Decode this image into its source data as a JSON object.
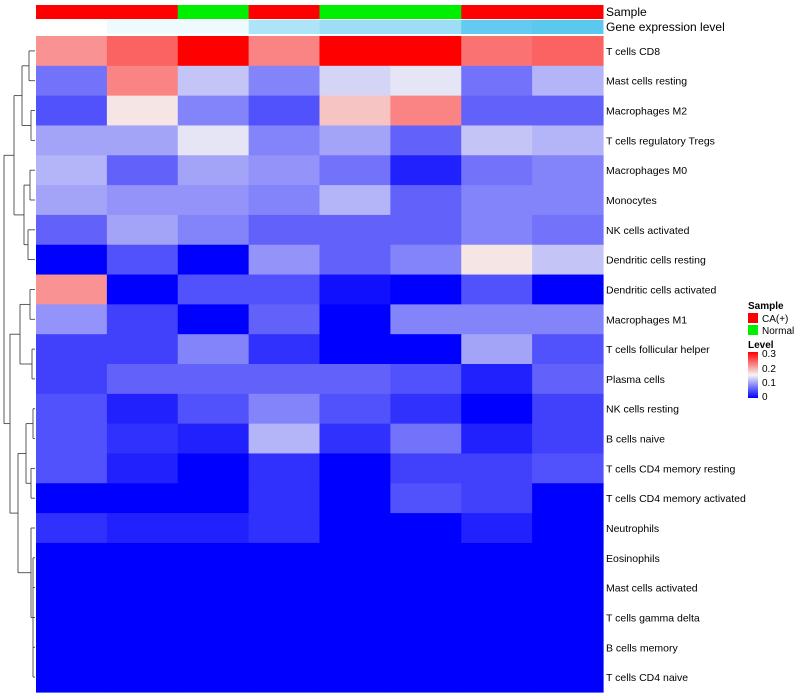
{
  "chart_data": {
    "type": "heatmap",
    "title": "",
    "columns": 8,
    "annotation_tracks": [
      {
        "name": "Sample",
        "values": [
          "CA(+)",
          "CA(+)",
          "Normal",
          "CA(+)",
          "Normal",
          "Normal",
          "CA(+)",
          "CA(+)"
        ]
      },
      {
        "name": "Gene expression level",
        "values": [
          0.0,
          0.1,
          0.1,
          0.5,
          0.6,
          0.6,
          0.95,
          1.0
        ]
      }
    ],
    "rows": [
      {
        "label": "T cells CD8",
        "values": [
          0.21,
          0.24,
          0.3,
          0.22,
          0.3,
          0.3,
          0.23,
          0.24
        ]
      },
      {
        "label": "Mast cells resting",
        "values": [
          0.07,
          0.22,
          0.12,
          0.08,
          0.13,
          0.14,
          0.07,
          0.11
        ]
      },
      {
        "label": "Macrophages M2",
        "values": [
          0.05,
          0.16,
          0.08,
          0.05,
          0.18,
          0.22,
          0.06,
          0.06
        ]
      },
      {
        "label": "T cells regulatory  Tregs",
        "values": [
          0.1,
          0.1,
          0.14,
          0.08,
          0.1,
          0.06,
          0.12,
          0.11
        ]
      },
      {
        "label": "Macrophages M0",
        "values": [
          0.11,
          0.06,
          0.1,
          0.09,
          0.07,
          0.02,
          0.07,
          0.08
        ]
      },
      {
        "label": "Monocytes",
        "values": [
          0.1,
          0.09,
          0.09,
          0.08,
          0.11,
          0.06,
          0.08,
          0.08
        ]
      },
      {
        "label": "NK cells activated",
        "values": [
          0.06,
          0.1,
          0.08,
          0.06,
          0.06,
          0.06,
          0.08,
          0.07
        ]
      },
      {
        "label": "Dendritic cells resting",
        "values": [
          0.0,
          0.05,
          0.0,
          0.09,
          0.06,
          0.08,
          0.16,
          0.12
        ]
      },
      {
        "label": "Dendritic cells activated",
        "values": [
          0.21,
          0.0,
          0.05,
          0.05,
          0.01,
          0.0,
          0.05,
          0.0
        ]
      },
      {
        "label": "Macrophages M1",
        "values": [
          0.09,
          0.04,
          0.0,
          0.06,
          0.0,
          0.08,
          0.08,
          0.08
        ]
      },
      {
        "label": "T cells follicular helper",
        "values": [
          0.04,
          0.04,
          0.08,
          0.03,
          0.0,
          0.0,
          0.1,
          0.05
        ]
      },
      {
        "label": "Plasma cells",
        "values": [
          0.04,
          0.06,
          0.06,
          0.06,
          0.06,
          0.05,
          0.02,
          0.06
        ]
      },
      {
        "label": "NK cells resting",
        "values": [
          0.05,
          0.02,
          0.05,
          0.08,
          0.05,
          0.03,
          0.0,
          0.04
        ]
      },
      {
        "label": "B cells naive",
        "values": [
          0.05,
          0.03,
          0.02,
          0.11,
          0.03,
          0.07,
          0.02,
          0.04
        ]
      },
      {
        "label": "T cells CD4 memory resting",
        "values": [
          0.05,
          0.02,
          0.0,
          0.03,
          0.0,
          0.04,
          0.04,
          0.05
        ]
      },
      {
        "label": "T cells CD4 memory activated",
        "values": [
          0.0,
          0.0,
          0.0,
          0.03,
          0.0,
          0.05,
          0.04,
          0.0
        ]
      },
      {
        "label": "Neutrophils",
        "values": [
          0.03,
          0.02,
          0.02,
          0.03,
          0.0,
          0.0,
          0.02,
          0.0
        ]
      },
      {
        "label": "Eosinophils",
        "values": [
          0.0,
          0.0,
          0.0,
          0.0,
          0.0,
          0.0,
          0.0,
          0.0
        ]
      },
      {
        "label": "Mast cells activated",
        "values": [
          0.0,
          0.0,
          0.0,
          0.0,
          0.0,
          0.0,
          0.0,
          0.0
        ]
      },
      {
        "label": "T cells gamma delta",
        "values": [
          0.0,
          0.0,
          0.0,
          0.0,
          0.0,
          0.0,
          0.0,
          0.0
        ]
      },
      {
        "label": "B cells memory",
        "values": [
          0.0,
          0.0,
          0.0,
          0.0,
          0.0,
          0.0,
          0.0,
          0.0
        ]
      },
      {
        "label": "T cells CD4 naive",
        "values": [
          0.0,
          0.0,
          0.0,
          0.0,
          0.0,
          0.0,
          0.0,
          0.0
        ]
      }
    ],
    "color_scale": {
      "min": 0,
      "mid": 0.15,
      "max": 0.3,
      "low_color": "#0000ff",
      "mid_color": "#f5f5f5",
      "high_color": "#ff0000"
    },
    "legend": {
      "position": "right",
      "sample_title": "Sample",
      "sample_entries": [
        {
          "label": "CA(+)",
          "color": "#ff0000"
        },
        {
          "label": "Normal",
          "color": "#00ee00"
        }
      ],
      "level_title": "Level",
      "level_ticks": [
        "0.3",
        "0.2",
        "0.1",
        "0"
      ]
    },
    "dendrogram": "row clustering tree on left side",
    "gene_expression_low_color": "#ffffff",
    "gene_expression_high_color": "#5bc8f0"
  }
}
